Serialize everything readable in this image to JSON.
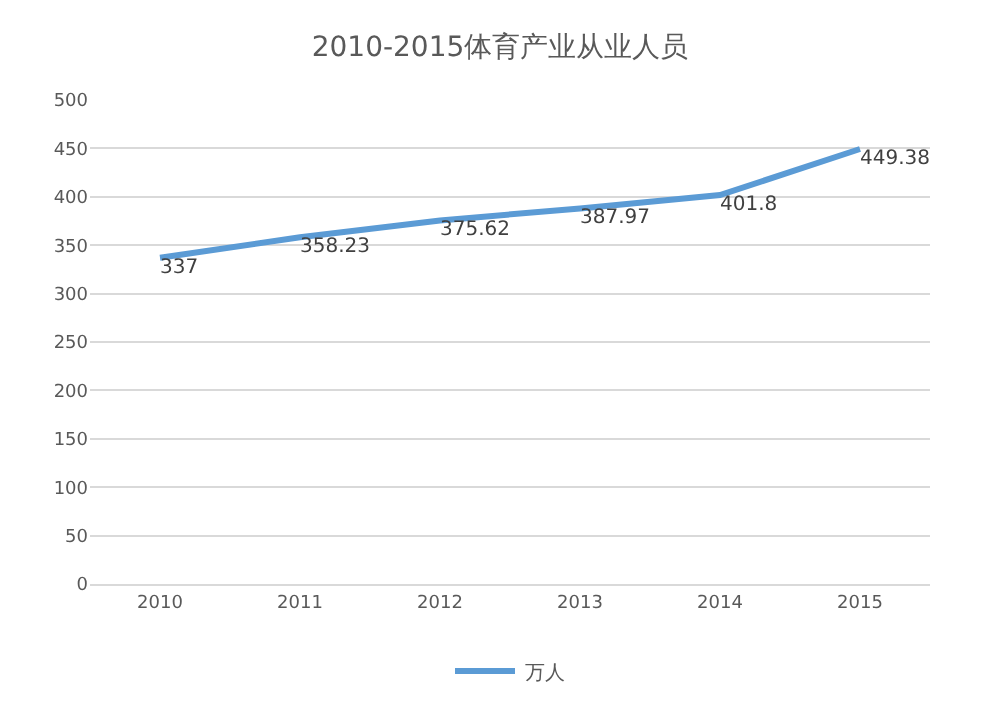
{
  "chart_data": {
    "type": "line",
    "title": "2010-2015体育产业从业人员",
    "categories": [
      "2010",
      "2011",
      "2012",
      "2013",
      "2014",
      "2015"
    ],
    "series": [
      {
        "name": "万人",
        "color": "#5b9bd5",
        "values": [
          337,
          358.23,
          375.62,
          387.97,
          401.8,
          449.38
        ]
      }
    ],
    "ylim": [
      0,
      500
    ],
    "yticks": [
      0,
      50,
      100,
      150,
      200,
      250,
      300,
      350,
      400,
      450,
      500
    ],
    "grid": "y",
    "legend": "bottom",
    "data_labels": true,
    "marker": "none",
    "line_style": "solid"
  }
}
